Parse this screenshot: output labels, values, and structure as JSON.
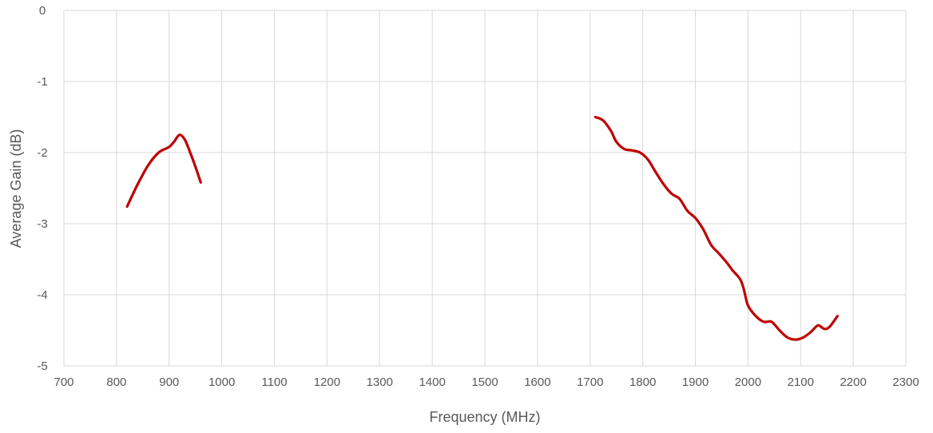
{
  "chart_data": {
    "type": "line",
    "title": "",
    "xlabel": "Frequency (MHz)",
    "ylabel": "Average Gain (dB)",
    "xlim": [
      700,
      2300
    ],
    "ylim": [
      -5,
      0
    ],
    "x_ticks": [
      700,
      800,
      900,
      1000,
      1100,
      1200,
      1300,
      1400,
      1500,
      1600,
      1700,
      1800,
      1900,
      2000,
      2100,
      2200,
      2300
    ],
    "y_ticks": [
      0,
      -1,
      -2,
      -3,
      -4,
      -5
    ],
    "grid": true,
    "legend": "none",
    "series_color": "#c00000",
    "series": [
      {
        "segments": [
          [
            [
              820,
              -2.76
            ],
            [
              840,
              -2.45
            ],
            [
              860,
              -2.18
            ],
            [
              880,
              -2.0
            ],
            [
              900,
              -1.92
            ],
            [
              910,
              -1.84
            ],
            [
              920,
              -1.75
            ],
            [
              930,
              -1.82
            ],
            [
              940,
              -2.0
            ],
            [
              950,
              -2.2
            ],
            [
              960,
              -2.42
            ]
          ],
          [
            [
              1710,
              -1.5
            ],
            [
              1725,
              -1.55
            ],
            [
              1740,
              -1.7
            ],
            [
              1750,
              -1.85
            ],
            [
              1765,
              -1.95
            ],
            [
              1780,
              -1.97
            ],
            [
              1795,
              -2.0
            ],
            [
              1810,
              -2.1
            ],
            [
              1825,
              -2.28
            ],
            [
              1840,
              -2.45
            ],
            [
              1855,
              -2.58
            ],
            [
              1870,
              -2.65
            ],
            [
              1885,
              -2.82
            ],
            [
              1900,
              -2.92
            ],
            [
              1915,
              -3.08
            ],
            [
              1930,
              -3.3
            ],
            [
              1945,
              -3.42
            ],
            [
              1960,
              -3.55
            ],
            [
              1970,
              -3.65
            ],
            [
              1985,
              -3.78
            ],
            [
              1992,
              -3.92
            ],
            [
              2000,
              -4.15
            ],
            [
              2015,
              -4.3
            ],
            [
              2030,
              -4.38
            ],
            [
              2045,
              -4.38
            ],
            [
              2060,
              -4.5
            ],
            [
              2075,
              -4.6
            ],
            [
              2090,
              -4.63
            ],
            [
              2105,
              -4.6
            ],
            [
              2120,
              -4.52
            ],
            [
              2133,
              -4.43
            ],
            [
              2145,
              -4.48
            ],
            [
              2155,
              -4.45
            ],
            [
              2170,
              -4.3
            ]
          ]
        ]
      }
    ]
  }
}
